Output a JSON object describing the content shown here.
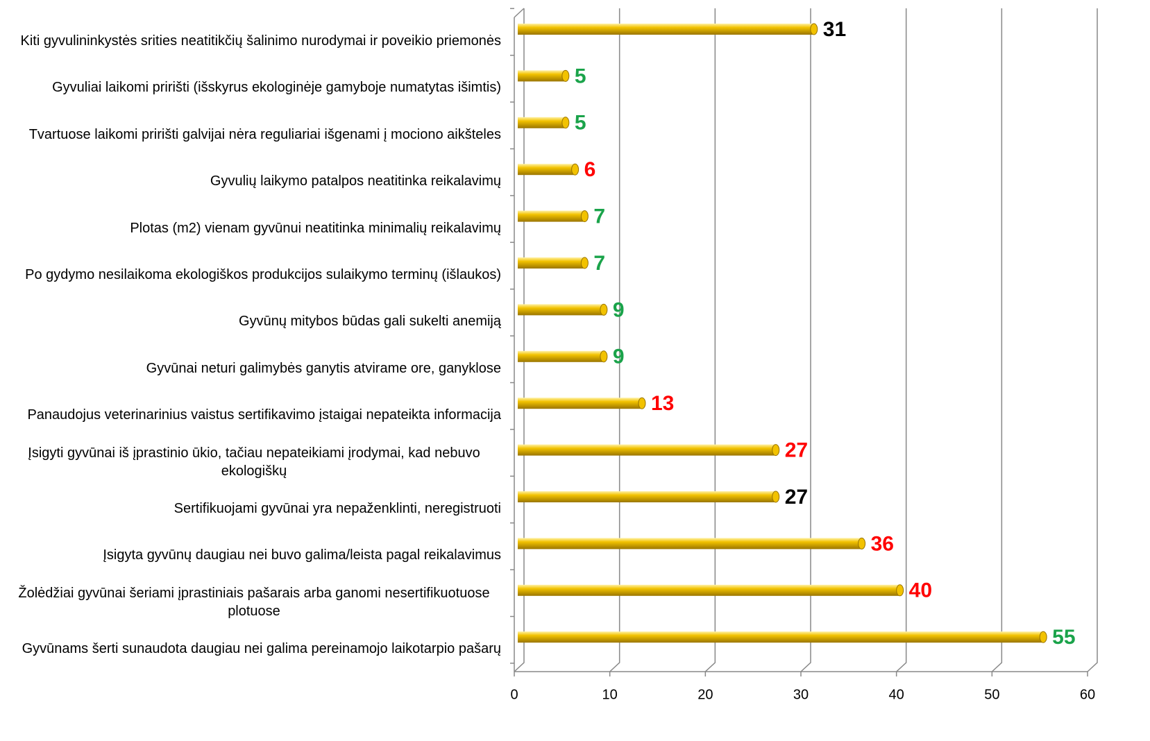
{
  "chart_data": {
    "type": "bar",
    "orientation": "horizontal",
    "categories": [
      "Kiti gyvulininkystės srities neatitikčių šalinimo nurodymai ir poveikio priemonės",
      "Gyvuliai laikomi pririšti (išskyrus ekologinėje gamyboje numatytas išimtis)",
      "Tvartuose laikomi pririšti galvijai nėra reguliariai išgenami į mociono aikšteles",
      "Gyvulių laikymo patalpos neatitinka reikalavimų",
      "Plotas (m2) vienam gyvūnui neatitinka minimalių reikalavimų",
      "Po gydymo nesilaikoma ekologiškos produkcijos sulaikymo terminų (išlaukos)",
      "Gyvūnų mitybos būdas gali sukelti anemiją",
      "Gyvūnai neturi galimybės ganytis atvirame ore, ganyklose",
      "Panaudojus veterinarinius vaistus sertifikavimo įstaigai nepateikta informacija",
      "Įsigyti gyvūnai iš įprastinio ūkio, tačiau nepateikiami įrodymai, kad nebuvo ekologiškų",
      "Sertifikuojami gyvūnai yra nepaženklinti, neregistruoti",
      "Įsigyta gyvūnų daugiau nei buvo galima/leista pagal reikalavimus",
      "Žolėdžiai gyvūnai šeriami  įprastiniais pašarais arba ganomi nesertifikuotuose plotuose",
      "Gyvūnams šerti sunaudota daugiau nei galima pereinamojo laikotarpio pašarų"
    ],
    "values": [
      31,
      5,
      5,
      6,
      7,
      7,
      9,
      9,
      13,
      27,
      27,
      36,
      40,
      55
    ],
    "color": "#f2c200",
    "label_colors": [
      "#000000",
      "#1aa34a",
      "#1aa34a",
      "#ff0000",
      "#1aa34a",
      "#1aa34a",
      "#1aa34a",
      "#1aa34a",
      "#ff0000",
      "#ff0000",
      "#000000",
      "#ff0000",
      "#ff0000",
      "#1aa34a"
    ],
    "xlim": [
      0,
      60
    ],
    "xticks": [
      0,
      10,
      20,
      30,
      40,
      50,
      60
    ],
    "grid": true
  }
}
